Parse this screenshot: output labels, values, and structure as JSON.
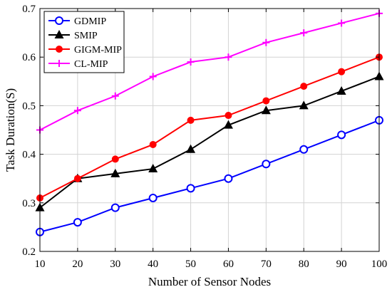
{
  "chart_data": {
    "type": "line",
    "title": "",
    "xlabel": "Number of Sensor Nodes",
    "ylabel": "Task Duration(S)",
    "x": [
      10,
      20,
      30,
      40,
      50,
      60,
      70,
      80,
      90,
      100
    ],
    "xlim": [
      10,
      100
    ],
    "ylim": [
      0.2,
      0.7
    ],
    "xticks": [
      "10",
      "20",
      "30",
      "40",
      "50",
      "60",
      "70",
      "80",
      "90",
      "100"
    ],
    "yticks": [
      "0.2",
      "0.3",
      "0.4",
      "0.5",
      "0.6",
      "0.7"
    ],
    "grid": true,
    "legend_position": "top-left",
    "series": [
      {
        "name": "GDMIP",
        "color": "#0000ff",
        "marker": "circle",
        "values": [
          0.24,
          0.26,
          0.29,
          0.31,
          0.33,
          0.35,
          0.38,
          0.41,
          0.44,
          0.47
        ]
      },
      {
        "name": "SMIP",
        "color": "#000000",
        "marker": "triangle",
        "values": [
          0.29,
          0.35,
          0.36,
          0.37,
          0.41,
          0.46,
          0.49,
          0.5,
          0.53,
          0.56
        ]
      },
      {
        "name": "GIGM-MIP",
        "color": "#ff0000",
        "marker": "filled-circle",
        "values": [
          0.31,
          0.35,
          0.39,
          0.42,
          0.47,
          0.48,
          0.51,
          0.54,
          0.57,
          0.6
        ]
      },
      {
        "name": "CL-MIP",
        "color": "#ff00ff",
        "marker": "plus",
        "values": [
          0.45,
          0.49,
          0.52,
          0.56,
          0.59,
          0.6,
          0.63,
          0.65,
          0.67,
          0.69
        ]
      }
    ]
  }
}
